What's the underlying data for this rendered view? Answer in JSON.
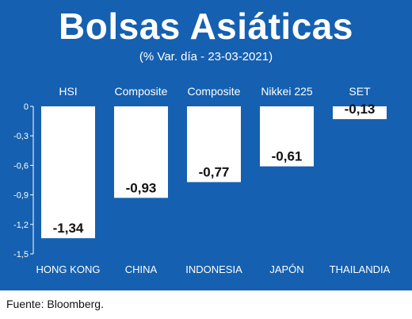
{
  "title": "Bolsas Asiáticas",
  "subtitle": "(% Var. día - 23-03-2021)",
  "source": "Fuente: Bloomberg.",
  "colors": {
    "background": "#1560b0",
    "bar": "#ffffff",
    "text_on_panel": "#ffffff",
    "value_label": "#111111"
  },
  "chart_data": {
    "type": "bar",
    "title": "Bolsas Asiáticas",
    "subtitle": "(% Var. día - 23-03-2021)",
    "categories": [
      "HONG KONG",
      "CHINA",
      "INDONESIA",
      "JAPÓN",
      "THAILANDIA"
    ],
    "index_names": [
      "HSI",
      "Composite",
      "Composite",
      "Nikkei 225",
      "SET"
    ],
    "values": [
      -1.34,
      -0.93,
      -0.77,
      -0.61,
      -0.13
    ],
    "value_labels": [
      "-1,34",
      "-0,93",
      "-0,77",
      "-0,61",
      "-0,13"
    ],
    "y_ticks": [
      0,
      -0.3,
      -0.6,
      -0.9,
      -1.2,
      -1.5
    ],
    "y_tick_labels": [
      "0",
      "-0,3",
      "-0,6",
      "-0,9",
      "-1,2",
      "-1,5"
    ],
    "ylim": [
      -1.5,
      0
    ],
    "xlabel": "",
    "ylabel": "",
    "grid": false,
    "legend": "none"
  }
}
